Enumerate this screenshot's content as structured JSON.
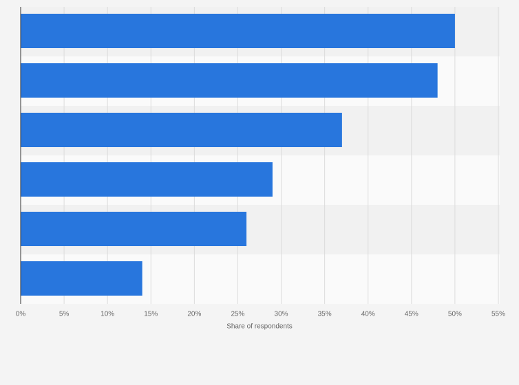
{
  "chart_data": {
    "type": "hbar",
    "categories": [
      null,
      null,
      null,
      null,
      null,
      null
    ],
    "values": [
      50,
      48,
      37,
      29,
      26,
      14
    ],
    "color": "#2876dd",
    "xlabel": "Share of respondents",
    "xlim": [
      0,
      55
    ],
    "xticks": [
      {
        "value": 0,
        "label": "0%"
      },
      {
        "value": 5,
        "label": "5%"
      },
      {
        "value": 10,
        "label": "10%"
      },
      {
        "value": 15,
        "label": "15%"
      },
      {
        "value": 20,
        "label": "20%"
      },
      {
        "value": 25,
        "label": "25%"
      },
      {
        "value": 30,
        "label": "30%"
      },
      {
        "value": 35,
        "label": "35%"
      },
      {
        "value": 40,
        "label": "40%"
      },
      {
        "value": 45,
        "label": "45%"
      },
      {
        "value": 50,
        "label": "50%"
      },
      {
        "value": 55,
        "label": "55%"
      }
    ],
    "grid": true
  }
}
